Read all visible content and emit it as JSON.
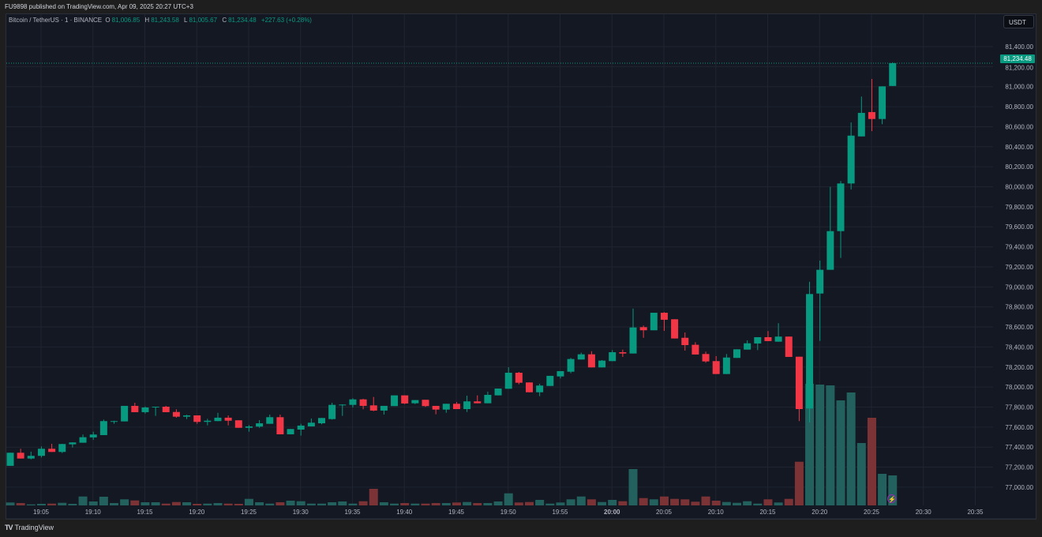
{
  "header": {
    "published": "FU9898 published on TradingView.com, Apr 09, 2025 20:27 UTC+3"
  },
  "legend": {
    "symbol": "Bitcoin / TetherUS · 1 · BINANCE",
    "o_label": "O",
    "o": "81,006.85",
    "h_label": "H",
    "h": "81,243.58",
    "l_label": "L",
    "l": "81,005.67",
    "c_label": "C",
    "c": "81,234.48",
    "change": "+227.63 (+0.28%)"
  },
  "currency_button": "USDT",
  "last_price_label": "81,234.48",
  "footer": {
    "brand": "TradingView"
  },
  "colors": {
    "up": "#089981",
    "down": "#f23645",
    "volume_up": "#22615d",
    "volume_down": "#7b3335",
    "background": "#141823",
    "grid": "#1f2430"
  },
  "icons": {
    "alert": "lightning-icon",
    "logo": "tradingview-logo"
  },
  "chart_data": {
    "type": "candlestick",
    "title": "",
    "interval": "1",
    "ylim": [
      76900,
      81500
    ],
    "y_ticks": [
      "81,400.00",
      "81,200.00",
      "81,000.00",
      "80,800.00",
      "80,600.00",
      "80,400.00",
      "80,200.00",
      "80,000.00",
      "79,800.00",
      "79,600.00",
      "79,400.00",
      "79,200.00",
      "79,000.00",
      "78,800.00",
      "78,600.00",
      "78,400.00",
      "78,200.00",
      "78,000.00",
      "77,800.00",
      "77,600.00",
      "77,400.00",
      "77,200.00",
      "77,000.00"
    ],
    "x_ticks": [
      "19:05",
      "19:10",
      "19:15",
      "19:20",
      "19:25",
      "19:30",
      "19:35",
      "19:40",
      "19:45",
      "19:50",
      "19:55",
      "20:00",
      "20:05",
      "20:10",
      "20:15",
      "20:20",
      "20:25",
      "20:30",
      "20:35"
    ],
    "grid": true,
    "volume_note": "",
    "candle_fields": [
      "time",
      "open",
      "high",
      "low",
      "close",
      "volume_relative"
    ],
    "candles": [
      [
        "19:02",
        77213,
        77344,
        77213,
        77344,
        3.7
      ],
      [
        "19:03",
        77344,
        77384,
        77286,
        77286,
        3
      ],
      [
        "19:04",
        77286,
        77355,
        77278,
        77313,
        1.3
      ],
      [
        "19:05",
        77313,
        77407,
        77297,
        77384,
        2
      ],
      [
        "19:06",
        77384,
        77433,
        77352,
        77352,
        2.3
      ],
      [
        "19:07",
        77352,
        77433,
        77341,
        77431,
        3.3
      ],
      [
        "19:08",
        77428,
        77449,
        77396,
        77447,
        2
      ],
      [
        "19:09",
        77444,
        77526,
        77444,
        77499,
        11.3
      ],
      [
        "19:10",
        77497,
        77554,
        77473,
        77526,
        5
      ],
      [
        "19:11",
        77520,
        77675,
        77520,
        77660,
        11
      ],
      [
        "19:12",
        77657,
        77664,
        77633,
        77660,
        3
      ],
      [
        "19:13",
        77657,
        77812,
        77657,
        77812,
        7.7
      ],
      [
        "19:14",
        77812,
        77843,
        77749,
        77749,
        6.3
      ],
      [
        "19:15",
        77749,
        77806,
        77735,
        77796,
        4
      ],
      [
        "19:16",
        77802,
        77804,
        77712,
        77804,
        4
      ],
      [
        "19:17",
        77804,
        77812,
        77749,
        77749,
        2.3
      ],
      [
        "19:18",
        77751,
        77778,
        77694,
        77704,
        4.3
      ],
      [
        "19:19",
        77704,
        77723,
        77680,
        77717,
        4
      ],
      [
        "19:20",
        77717,
        77717,
        77633,
        77652,
        2
      ],
      [
        "19:21",
        77652,
        77683,
        77617,
        77664,
        2.3
      ],
      [
        "19:22",
        77660,
        77743,
        77660,
        77694,
        3
      ],
      [
        "19:23",
        77694,
        77717,
        77617,
        77664,
        2.3
      ],
      [
        "19:24",
        77668,
        77668,
        77593,
        77593,
        2
      ],
      [
        "19:25",
        77593,
        77620,
        77554,
        77607,
        8.3
      ],
      [
        "19:26",
        77605,
        77670,
        77593,
        77638,
        4
      ],
      [
        "19:27",
        77633,
        77725,
        77633,
        77699,
        2.3
      ],
      [
        "19:28",
        77699,
        77725,
        77528,
        77528,
        4
      ],
      [
        "19:29",
        77528,
        77581,
        77528,
        77581,
        6
      ],
      [
        "19:30",
        77575,
        77633,
        77515,
        77615,
        5.3
      ],
      [
        "19:31",
        77607,
        77686,
        77607,
        77644,
        2.3
      ],
      [
        "19:32",
        77638,
        77691,
        77628,
        77691,
        2.3
      ],
      [
        "19:33",
        77680,
        77843,
        77675,
        77822,
        4
      ],
      [
        "19:34",
        77822,
        77828,
        77712,
        77825,
        5
      ],
      [
        "19:35",
        77822,
        77888,
        77796,
        77877,
        2.3
      ],
      [
        "19:36",
        77877,
        77883,
        77778,
        77812,
        5.3
      ],
      [
        "19:37",
        77817,
        77901,
        77759,
        77765,
        21
      ],
      [
        "19:38",
        77765,
        77812,
        77725,
        77812,
        4
      ],
      [
        "19:39",
        77810,
        77917,
        77810,
        77917,
        2.3
      ],
      [
        "19:40",
        77917,
        77917,
        77830,
        77836,
        3
      ],
      [
        "19:41",
        77838,
        77870,
        77830,
        77870,
        2.3
      ],
      [
        "19:42",
        77873,
        77873,
        77802,
        77810,
        2.3
      ],
      [
        "19:43",
        77812,
        77812,
        77728,
        77775,
        3
      ],
      [
        "19:44",
        77775,
        77833,
        77743,
        77833,
        3
      ],
      [
        "19:45",
        77833,
        77851,
        77780,
        77780,
        3.7
      ],
      [
        "19:46",
        77780,
        77914,
        77751,
        77857,
        4.3
      ],
      [
        "19:47",
        77857,
        77917,
        77838,
        77838,
        3
      ],
      [
        "19:48",
        77838,
        77954,
        77838,
        77922,
        3
      ],
      [
        "19:49",
        77917,
        77985,
        77917,
        77985,
        5
      ],
      [
        "19:50",
        77983,
        78198,
        77983,
        78143,
        15.3
      ],
      [
        "19:51",
        78143,
        78151,
        78027,
        78043,
        3.7
      ],
      [
        "19:52",
        78046,
        78046,
        77948,
        77948,
        4.3
      ],
      [
        "19:53",
        77948,
        78033,
        77909,
        78015,
        7
      ],
      [
        "19:54",
        78011,
        78112,
        78011,
        78112,
        2.3
      ],
      [
        "19:55",
        78106,
        78159,
        78086,
        78159,
        3.7
      ],
      [
        "19:56",
        78153,
        78291,
        78138,
        78280,
        7.7
      ],
      [
        "19:57",
        78275,
        78343,
        78275,
        78327,
        11.3
      ],
      [
        "19:58",
        78327,
        78358,
        78196,
        78196,
        7.7
      ],
      [
        "19:59",
        78196,
        78269,
        78196,
        78264,
        4.3
      ],
      [
        "20:00",
        78259,
        78369,
        78259,
        78348,
        7
      ],
      [
        "20:01",
        78348,
        78374,
        78301,
        78335,
        5.3
      ],
      [
        "20:02",
        78335,
        78784,
        78335,
        78595,
        46
      ],
      [
        "20:03",
        78598,
        78614,
        78492,
        78567,
        9.3
      ],
      [
        "20:04",
        78567,
        78742,
        78567,
        78742,
        7.7
      ],
      [
        "20:05",
        78742,
        78748,
        78561,
        78672,
        11.3
      ],
      [
        "20:06",
        78677,
        78677,
        78485,
        78485,
        8.3
      ],
      [
        "20:07",
        78492,
        78545,
        78364,
        78419,
        7.7
      ],
      [
        "20:08",
        78422,
        78448,
        78325,
        78325,
        4.7
      ],
      [
        "20:09",
        78330,
        78354,
        78243,
        78256,
        11.3
      ],
      [
        "20:10",
        78259,
        78309,
        78130,
        78130,
        6
      ],
      [
        "20:11",
        78130,
        78330,
        78130,
        78295,
        4.3
      ],
      [
        "20:12",
        78291,
        78377,
        78291,
        78377,
        3.3
      ],
      [
        "20:13",
        78374,
        78466,
        78374,
        78437,
        5.3
      ],
      [
        "20:14",
        78435,
        78498,
        78369,
        78498,
        2.3
      ],
      [
        "20:15",
        78498,
        78559,
        78459,
        78459,
        7.7
      ],
      [
        "20:16",
        78453,
        78638,
        78453,
        78504,
        3.7
      ],
      [
        "20:17",
        78504,
        78504,
        78301,
        78301,
        8.3
      ],
      [
        "20:18",
        78303,
        78303,
        77660,
        77780,
        55.3
      ],
      [
        "20:19",
        77786,
        79052,
        77646,
        78929,
        154
      ],
      [
        "20:20",
        78934,
        79263,
        78461,
        79171,
        153
      ],
      [
        "20:21",
        79171,
        79999,
        79171,
        79557,
        152
      ],
      [
        "20:22",
        79557,
        80057,
        79289,
        80033,
        133
      ],
      [
        "20:23",
        80033,
        80643,
        79973,
        80511,
        143
      ],
      [
        "20:24",
        80503,
        80901,
        80503,
        80738,
        79
      ],
      [
        "20:25",
        80746,
        81077,
        80556,
        80677,
        111
      ],
      [
        "20:26",
        80677,
        81003,
        80625,
        81003,
        40
      ],
      [
        "20:27",
        81006.85,
        81243.58,
        81005.67,
        81234.48,
        38
      ]
    ]
  }
}
